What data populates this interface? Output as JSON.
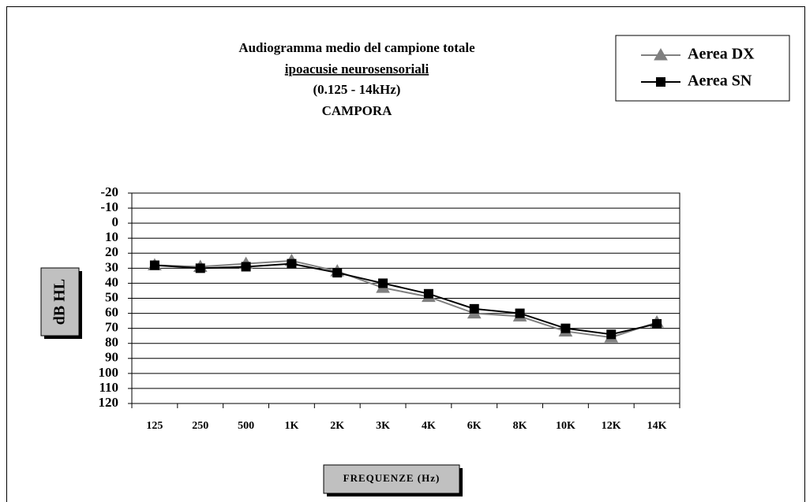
{
  "chart_data": {
    "type": "line",
    "title": "Audiogramma medio del campione totale",
    "subtitle": [
      "ipoacusie neurosensoriali",
      "(0.125 - 14kHz)",
      "CAMPORA"
    ],
    "x_label": "FREQUENZE (Hz)",
    "y_label": "dB HL",
    "categories": [
      "125",
      "250",
      "500",
      "1K",
      "2K",
      "3K",
      "4K",
      "6K",
      "8K",
      "10K",
      "12K",
      "14K"
    ],
    "series": [
      {
        "name": "Aerea DX",
        "color": "#808080",
        "marker": "triangle",
        "values": [
          28,
          29,
          27,
          25,
          32,
          43,
          49,
          60,
          62,
          72,
          76,
          66
        ]
      },
      {
        "name": "Aerea SN",
        "color": "#000000",
        "marker": "square",
        "values": [
          28,
          30,
          29,
          27,
          33,
          40,
          47,
          57,
          60,
          70,
          74,
          67
        ]
      }
    ],
    "ylim": [
      120,
      -20
    ],
    "yticks": [
      -20,
      -10,
      0,
      10,
      20,
      30,
      40,
      50,
      60,
      70,
      80,
      90,
      100,
      110,
      120
    ],
    "grid": true,
    "legend": "top-right"
  }
}
